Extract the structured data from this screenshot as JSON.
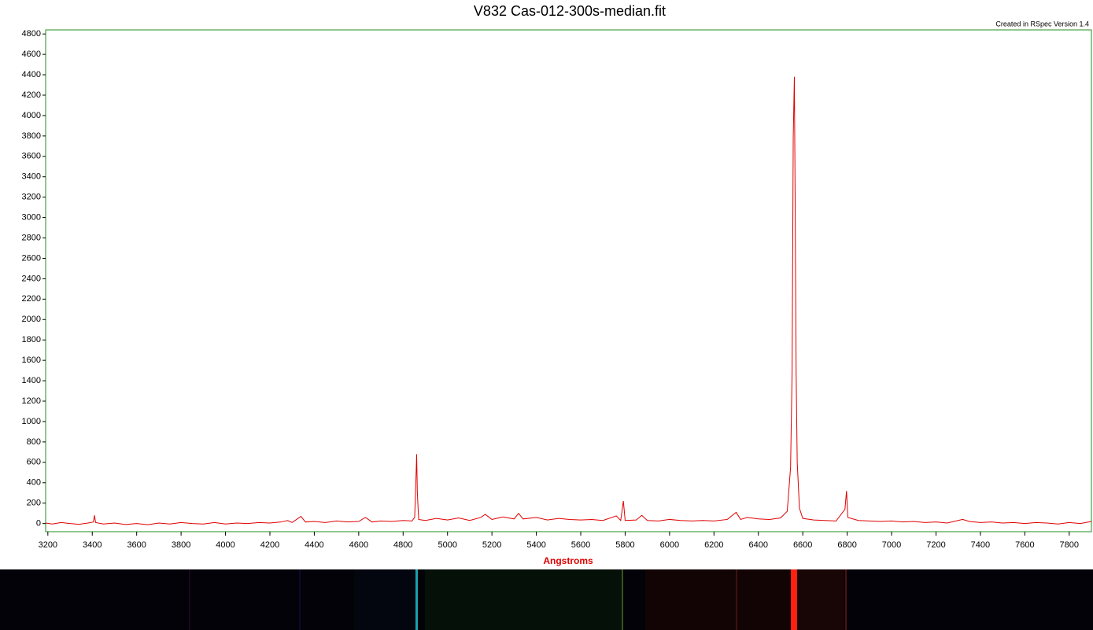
{
  "chart_data": {
    "type": "line",
    "title": "V832 Cas-012-300s-median.fit",
    "note": "Created in RSpec Version 1.4",
    "x_label": "Angstroms",
    "xlim": [
      3190,
      7900
    ],
    "ylim": [
      -80,
      4840
    ],
    "xticks": [
      3200,
      3400,
      3600,
      3800,
      4000,
      4200,
      4400,
      4600,
      4800,
      5000,
      5200,
      5400,
      5600,
      5800,
      6000,
      6200,
      6400,
      6600,
      6800,
      7000,
      7200,
      7400,
      7600,
      7800
    ],
    "yticks": [
      0,
      200,
      400,
      600,
      800,
      1000,
      1200,
      1400,
      1600,
      1800,
      2000,
      2200,
      2400,
      2600,
      2800,
      3000,
      3200,
      3400,
      3600,
      3800,
      4000,
      4200,
      4400,
      4600,
      4800
    ],
    "grid": false,
    "x": [
      3190,
      3220,
      3260,
      3300,
      3340,
      3380,
      3405,
      3410,
      3415,
      3450,
      3500,
      3550,
      3600,
      3650,
      3700,
      3750,
      3800,
      3850,
      3900,
      3950,
      4000,
      4050,
      4100,
      4150,
      4200,
      4250,
      4280,
      4300,
      4340,
      4360,
      4400,
      4450,
      4500,
      4550,
      4600,
      4630,
      4660,
      4700,
      4750,
      4800,
      4840,
      4852,
      4858,
      4861,
      4864,
      4870,
      4900,
      4950,
      5000,
      5050,
      5100,
      5150,
      5170,
      5200,
      5250,
      5300,
      5320,
      5340,
      5400,
      5450,
      5500,
      5550,
      5600,
      5650,
      5700,
      5760,
      5780,
      5792,
      5800,
      5850,
      5875,
      5900,
      5950,
      6000,
      6050,
      6100,
      6150,
      6200,
      6260,
      6300,
      6320,
      6350,
      6400,
      6450,
      6500,
      6530,
      6545,
      6552,
      6557,
      6562,
      6566,
      6570,
      6575,
      6585,
      6600,
      6650,
      6700,
      6750,
      6790,
      6797,
      6803,
      6850,
      6900,
      6950,
      7000,
      7050,
      7100,
      7150,
      7200,
      7250,
      7320,
      7350,
      7400,
      7450,
      7500,
      7550,
      7600,
      7650,
      7700,
      7750,
      7800,
      7850,
      7900
    ],
    "series": [
      {
        "name": "V832 Cas",
        "color": "#e00000",
        "values": [
          5,
          -5,
          10,
          0,
          -8,
          5,
          15,
          80,
          10,
          -5,
          5,
          -10,
          0,
          -12,
          5,
          -5,
          10,
          0,
          -5,
          10,
          -5,
          5,
          0,
          10,
          5,
          15,
          30,
          10,
          70,
          15,
          20,
          10,
          25,
          15,
          20,
          60,
          15,
          25,
          20,
          30,
          25,
          60,
          450,
          680,
          300,
          40,
          30,
          50,
          35,
          55,
          30,
          60,
          90,
          40,
          65,
          45,
          100,
          45,
          60,
          35,
          50,
          40,
          35,
          40,
          30,
          75,
          30,
          220,
          30,
          35,
          80,
          30,
          25,
          40,
          30,
          25,
          30,
          25,
          40,
          110,
          40,
          60,
          45,
          40,
          55,
          120,
          550,
          1500,
          3780,
          4380,
          3050,
          1500,
          600,
          150,
          50,
          35,
          30,
          25,
          140,
          320,
          60,
          30,
          25,
          20,
          25,
          15,
          20,
          10,
          15,
          5,
          40,
          20,
          10,
          15,
          5,
          10,
          0,
          10,
          5,
          -5,
          10,
          0,
          20
        ]
      }
    ]
  }
}
